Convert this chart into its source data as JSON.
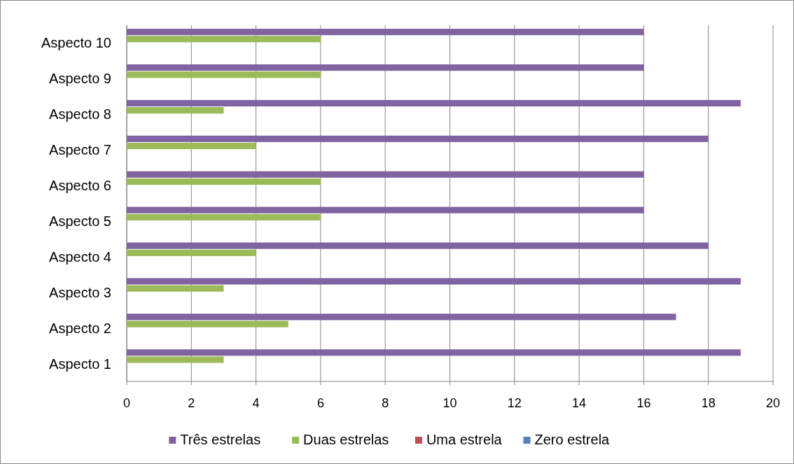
{
  "chart_data": {
    "type": "bar",
    "orientation": "horizontal",
    "categories": [
      "Aspecto 10",
      "Aspecto 9",
      "Aspecto 8",
      "Aspecto 7",
      "Aspecto 6",
      "Aspecto 5",
      "Aspecto 4",
      "Aspecto 3",
      "Aspecto 2",
      "Aspecto 1"
    ],
    "series": [
      {
        "name": "Três estrelas",
        "color": "#8064a2",
        "values": [
          16,
          16,
          19,
          18,
          16,
          16,
          18,
          19,
          17,
          19
        ]
      },
      {
        "name": "Duas estrelas",
        "color": "#9bbb59",
        "values": [
          6,
          6,
          3,
          4,
          6,
          6,
          4,
          3,
          5,
          3
        ]
      },
      {
        "name": "Uma estrela",
        "color": "#c0504d",
        "values": [
          0,
          0,
          0,
          0,
          0,
          0,
          0,
          0,
          0,
          0
        ]
      },
      {
        "name": "Zero estrela",
        "color": "#4f81bd",
        "values": [
          0,
          0,
          0,
          0,
          0,
          0,
          0,
          0,
          0,
          0
        ]
      }
    ],
    "xlim": [
      0,
      20
    ],
    "xticks": [
      0,
      2,
      4,
      6,
      8,
      10,
      12,
      14,
      16,
      18,
      20
    ],
    "grid": "x",
    "legend": "bottom"
  }
}
